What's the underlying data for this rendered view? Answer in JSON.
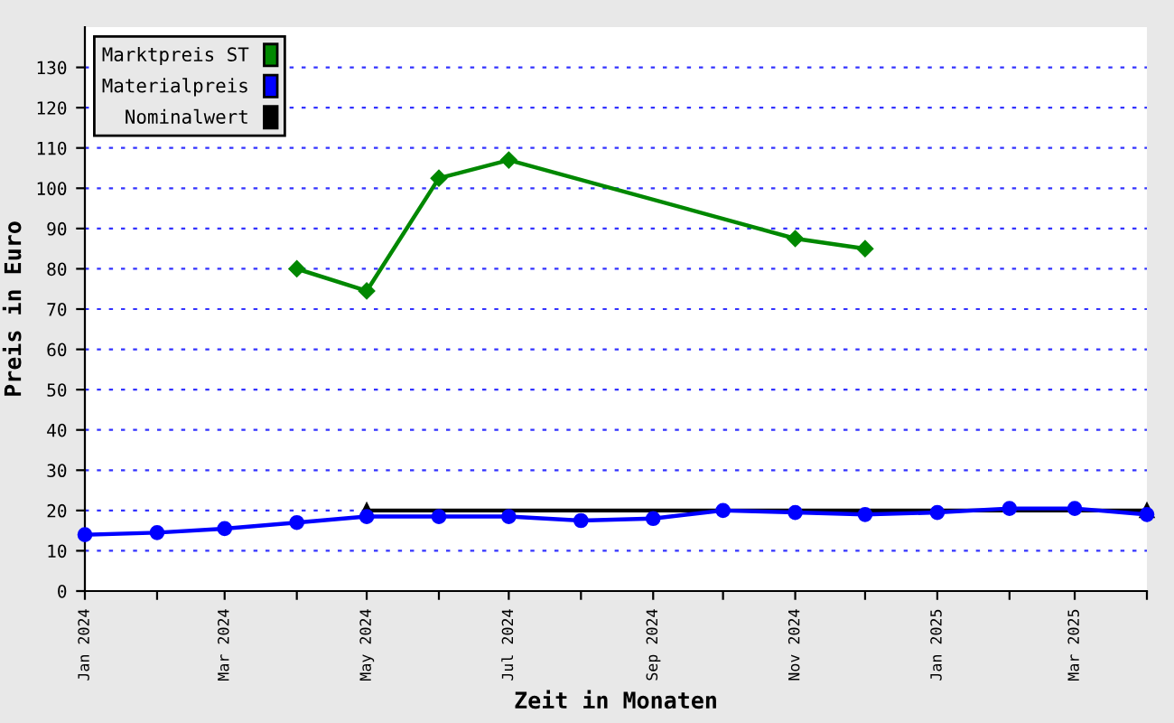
{
  "chart_data": {
    "type": "line",
    "xlabel": "Zeit in Monaten",
    "ylabel": "Preis in Euro",
    "x": [
      "2024-01",
      "2024-02",
      "2024-03",
      "2024-04",
      "2024-05",
      "2024-06",
      "2024-07",
      "2024-08",
      "2024-09",
      "2024-10",
      "2024-11",
      "2024-12",
      "2025-01",
      "2025-02",
      "2025-03",
      "2025-04"
    ],
    "series": [
      {
        "name": "Marktpreis ST",
        "color": "#008800",
        "marker": "diamond",
        "x": [
          "2024-04",
          "2024-05",
          "2024-06",
          "2024-07",
          "2024-11",
          "2024-12"
        ],
        "values": [
          80,
          74.5,
          102.5,
          107,
          87.5,
          85
        ]
      },
      {
        "name": "Materialpreis",
        "color": "#0000ff",
        "marker": "circle",
        "values": [
          14,
          14.5,
          15.5,
          17,
          18.5,
          18.5,
          18.5,
          17.5,
          18,
          20,
          19.5,
          19,
          19.5,
          20.5,
          20.5,
          19
        ]
      },
      {
        "name": "Nominalwert",
        "color": "#000000",
        "marker": "triangle",
        "x": [
          "2024-05",
          "2025-04"
        ],
        "values": [
          20,
          20
        ]
      }
    ],
    "xlim": [
      "2024-01",
      "2025-04"
    ],
    "xticks": [
      {
        "value": "2024-01",
        "label": "Jan 2024"
      },
      {
        "value": "2024-02",
        "label": null
      },
      {
        "value": "2024-03",
        "label": "Mar 2024"
      },
      {
        "value": "2024-04",
        "label": null
      },
      {
        "value": "2024-05",
        "label": "May 2024"
      },
      {
        "value": "2024-06",
        "label": null
      },
      {
        "value": "2024-07",
        "label": "Jul 2024"
      },
      {
        "value": "2024-08",
        "label": null
      },
      {
        "value": "2024-09",
        "label": "Sep 2024"
      },
      {
        "value": "2024-10",
        "label": null
      },
      {
        "value": "2024-11",
        "label": "Nov 2024"
      },
      {
        "value": "2024-12",
        "label": null
      },
      {
        "value": "2025-01",
        "label": "Jan 2025"
      },
      {
        "value": "2025-02",
        "label": null
      },
      {
        "value": "2025-03",
        "label": "Mar 2025"
      },
      {
        "value": "2025-04",
        "label": null
      }
    ],
    "ylim": [
      0,
      140
    ],
    "yticks": [
      0,
      10,
      20,
      30,
      40,
      50,
      60,
      70,
      80,
      90,
      100,
      110,
      120,
      130
    ],
    "grid": "y",
    "legend": "top left",
    "line_style": "solid"
  }
}
